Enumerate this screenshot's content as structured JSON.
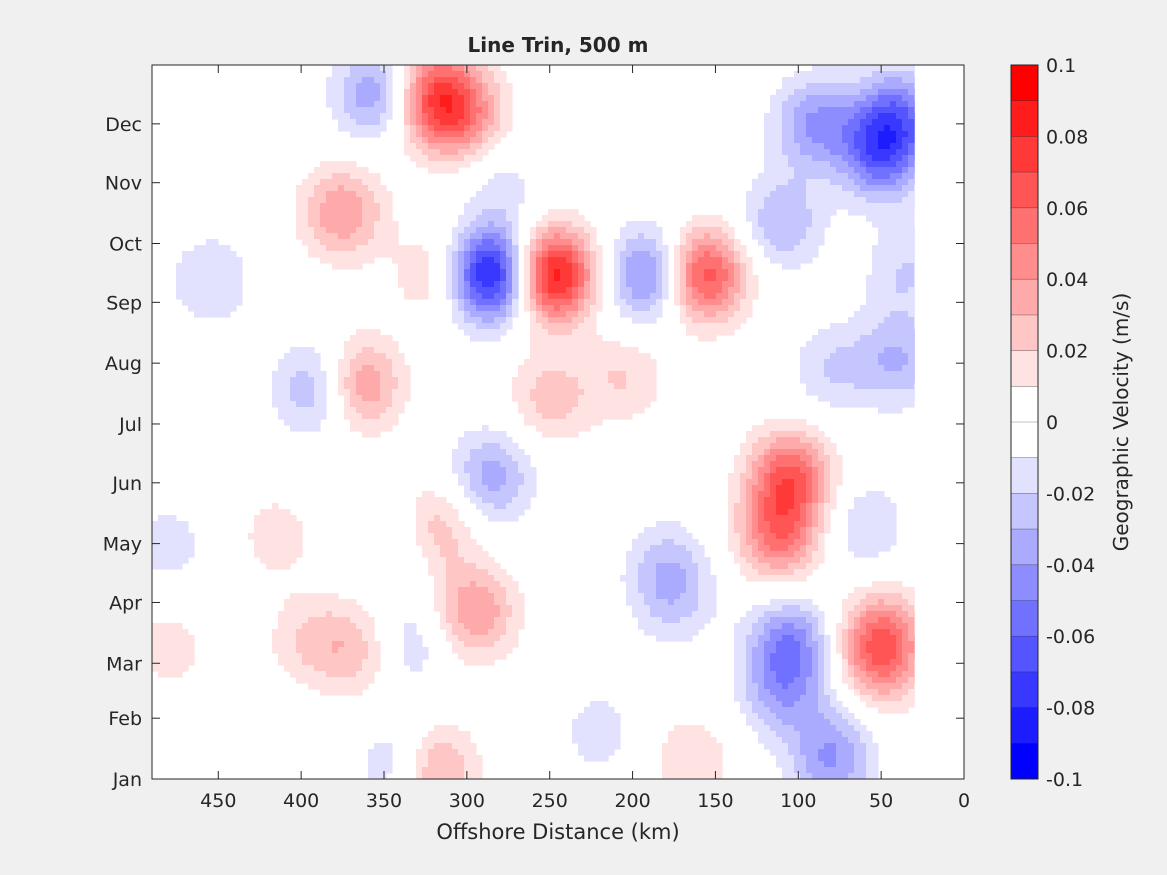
{
  "chart_data": {
    "type": "heatmap",
    "title": "Line Trin, 500 m",
    "xlabel": "Offshore Distance (km)",
    "ylabel": "",
    "x_axis_reversed": true,
    "xlim": [
      0,
      490
    ],
    "x_ticks": [
      450,
      400,
      350,
      300,
      250,
      200,
      150,
      100,
      50,
      0
    ],
    "x_tick_labels": [
      "450",
      "400",
      "350",
      "300",
      "250",
      "200",
      "150",
      "100",
      "50",
      "0"
    ],
    "y_ticks": [
      "Jan",
      "Feb",
      "Mar",
      "Apr",
      "May",
      "Jun",
      "Jul",
      "Aug",
      "Sep",
      "Oct",
      "Nov",
      "Dec"
    ],
    "y_tick_days": [
      1,
      32,
      60,
      91,
      121,
      152,
      182,
      213,
      244,
      274,
      305,
      335
    ],
    "ylim_days": [
      1,
      365
    ],
    "colorbar": {
      "label": "Geographic Velocity (m/s)",
      "min": -0.1,
      "max": 0.1,
      "ticks": [
        0.1,
        0.08,
        0.06,
        0.04,
        0.02,
        0,
        -0.02,
        -0.04,
        -0.06,
        -0.08,
        -0.1
      ],
      "tick_labels": [
        "0.1",
        "0.08",
        "0.06",
        "0.04",
        "0.02",
        "0",
        "-0.02",
        "-0.04",
        "-0.06",
        "-0.08",
        "-0.1"
      ],
      "levels": [
        "#ff0000",
        "#ff1c1c",
        "#ff3838",
        "#ff5555",
        "#ff7171",
        "#ff8d8d",
        "#ffaaaa",
        "#ffc6c6",
        "#ffe2e2",
        "#ffffff",
        "#ffffff",
        "#e2e2ff",
        "#c6c6ff",
        "#aaaaff",
        "#8d8dff",
        "#7171ff",
        "#5555ff",
        "#3838ff",
        "#1c1cff",
        "#0000ff"
      ]
    },
    "data_extent_km": [
      30,
      490
    ],
    "features": [
      {
        "x_km": 285,
        "day": 258,
        "value": -0.09
      },
      {
        "x_km": 248,
        "day": 258,
        "value": 0.09
      },
      {
        "x_km": 190,
        "day": 258,
        "value": -0.05
      },
      {
        "x_km": 157,
        "day": 258,
        "value": 0.07
      },
      {
        "x_km": 105,
        "day": 155,
        "value": 0.06
      },
      {
        "x_km": 112,
        "day": 125,
        "value": 0.05
      },
      {
        "x_km": 375,
        "day": 290,
        "value": 0.04
      },
      {
        "x_km": 365,
        "day": 202,
        "value": 0.045
      },
      {
        "x_km": 320,
        "day": 345,
        "value": 0.05
      },
      {
        "x_km": 300,
        "day": 338,
        "value": 0.035
      },
      {
        "x_km": 250,
        "day": 195,
        "value": 0.025
      },
      {
        "x_km": 205,
        "day": 206,
        "value": 0.02
      },
      {
        "x_km": 320,
        "day": 258,
        "value": 0.02
      },
      {
        "x_km": 295,
        "day": 86,
        "value": 0.04
      },
      {
        "x_km": 320,
        "day": 128,
        "value": 0.035
      },
      {
        "x_km": 365,
        "day": 67,
        "value": 0.025
      },
      {
        "x_km": 395,
        "day": 72,
        "value": 0.02
      },
      {
        "x_km": 50,
        "day": 75,
        "value": 0.04
      },
      {
        "x_km": 50,
        "day": 60,
        "value": 0.035
      },
      {
        "x_km": 320,
        "day": 5,
        "value": 0.04
      },
      {
        "x_km": 165,
        "day": 10,
        "value": 0.02
      },
      {
        "x_km": 480,
        "day": 68,
        "value": 0.015
      },
      {
        "x_km": 415,
        "day": 125,
        "value": 0.015
      },
      {
        "x_km": 315,
        "day": 360,
        "value": 0.02
      },
      {
        "x_km": 50,
        "day": 320,
        "value": -0.055
      },
      {
        "x_km": 40,
        "day": 340,
        "value": -0.045
      },
      {
        "x_km": 90,
        "day": 335,
        "value": -0.04
      },
      {
        "x_km": 110,
        "day": 285,
        "value": -0.03
      },
      {
        "x_km": 80,
        "day": 210,
        "value": -0.02
      },
      {
        "x_km": 105,
        "day": 70,
        "value": -0.045
      },
      {
        "x_km": 110,
        "day": 45,
        "value": -0.03
      },
      {
        "x_km": 80,
        "day": 20,
        "value": -0.02
      },
      {
        "x_km": 390,
        "day": 200,
        "value": -0.035
      },
      {
        "x_km": 455,
        "day": 255,
        "value": -0.02
      },
      {
        "x_km": 285,
        "day": 155,
        "value": -0.035
      },
      {
        "x_km": 355,
        "day": 350,
        "value": -0.04
      },
      {
        "x_km": 180,
        "day": 110,
        "value": -0.02
      },
      {
        "x_km": 335,
        "day": 122,
        "value": -0.02
      },
      {
        "x_km": 335,
        "day": 70,
        "value": -0.02
      },
      {
        "x_km": 220,
        "day": 25,
        "value": -0.015
      },
      {
        "x_km": 340,
        "day": 8,
        "value": -0.025
      },
      {
        "x_km": 480,
        "day": 120,
        "value": -0.015
      },
      {
        "x_km": 35,
        "day": 260,
        "value": -0.02
      },
      {
        "x_km": 60,
        "day": 130,
        "value": -0.02
      },
      {
        "x_km": 40,
        "day": 215,
        "value": -0.03
      },
      {
        "x_km": 175,
        "day": 93,
        "value": -0.02
      },
      {
        "x_km": 80,
        "day": 5,
        "value": -0.025
      },
      {
        "x_km": 280,
        "day": 305,
        "value": -0.015
      }
    ]
  }
}
